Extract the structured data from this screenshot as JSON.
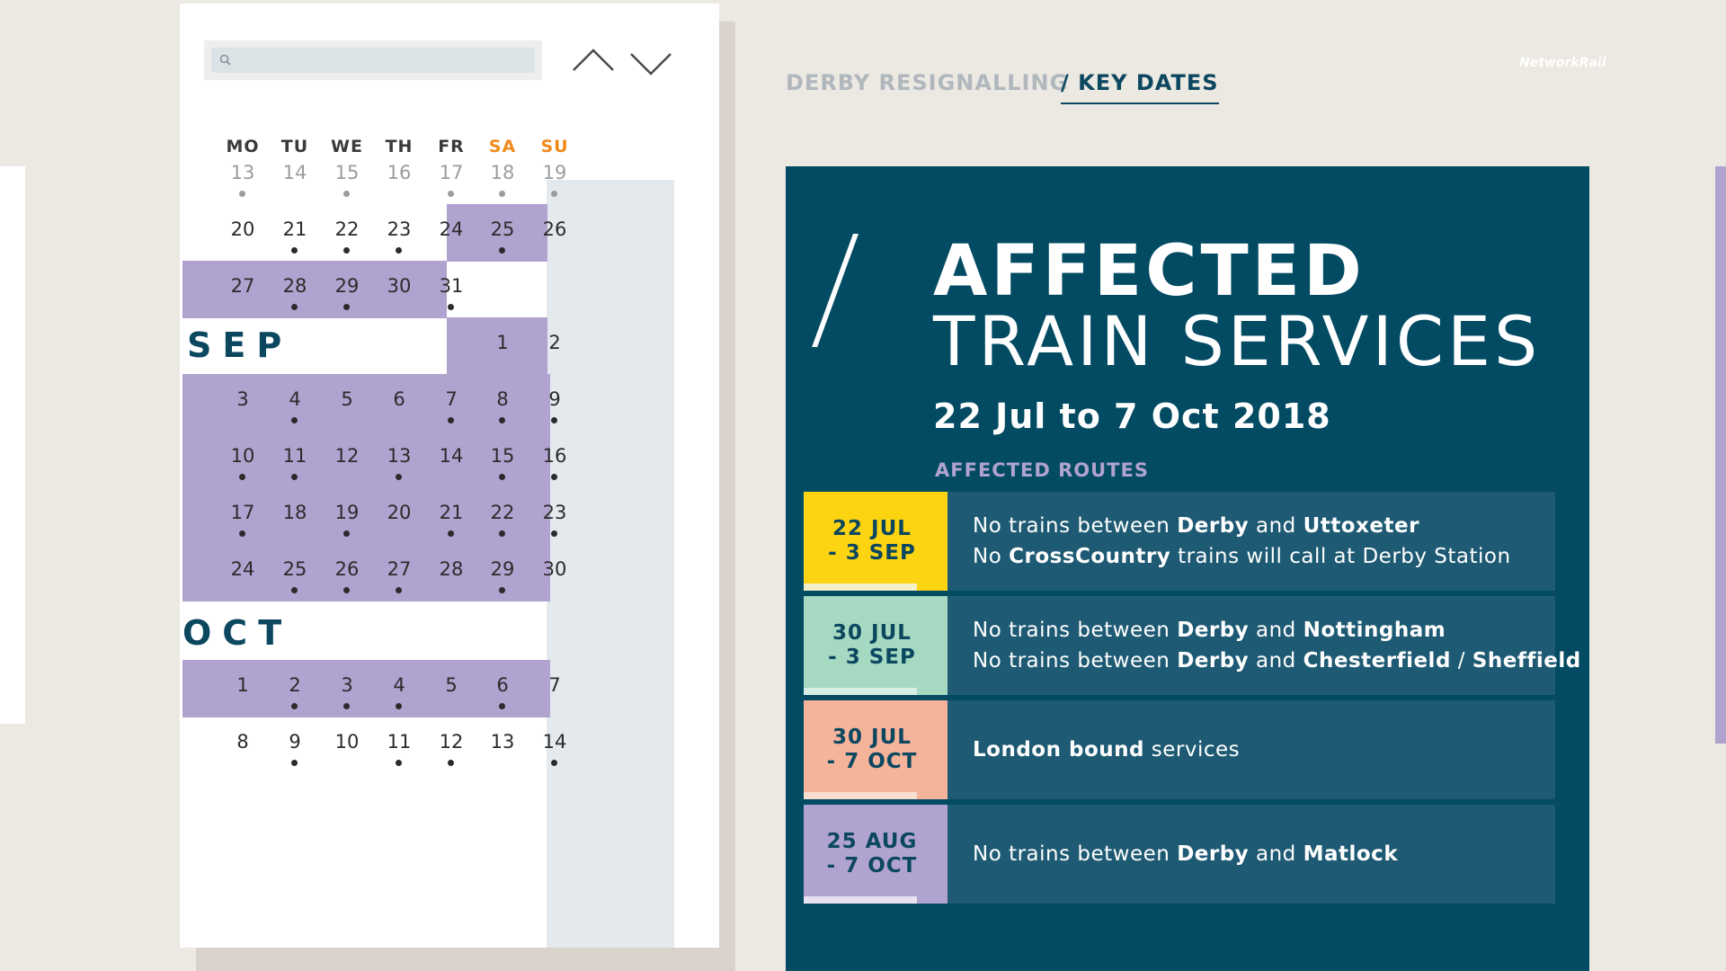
{
  "calendar": {
    "search": {
      "placeholder": ""
    },
    "day_headers": [
      "MO",
      "TU",
      "WE",
      "TH",
      "FR",
      "SA",
      "SU"
    ],
    "rows": [
      {
        "cells": [
          {
            "day": "13",
            "dot": true,
            "grey": true
          },
          {
            "day": "14",
            "dot": false,
            "grey": true
          },
          {
            "day": "15",
            "dot": true,
            "grey": true
          },
          {
            "day": "16",
            "dot": false,
            "grey": true
          },
          {
            "day": "17",
            "dot": true,
            "grey": true
          },
          {
            "day": "18",
            "dot": true,
            "grey": true
          },
          {
            "day": "19",
            "dot": true,
            "grey": true
          }
        ]
      },
      {
        "cells": [
          {
            "day": "20",
            "dot": false
          },
          {
            "day": "21",
            "dot": true
          },
          {
            "day": "22",
            "dot": true
          },
          {
            "day": "23",
            "dot": true
          },
          {
            "day": "24",
            "dot": false
          },
          {
            "day": "25",
            "dot": true
          },
          {
            "day": "26",
            "dot": false
          }
        ]
      },
      {
        "cells": [
          {
            "day": "27",
            "dot": false
          },
          {
            "day": "28",
            "dot": true
          },
          {
            "day": "29",
            "dot": true
          },
          {
            "day": "30",
            "dot": false
          },
          {
            "day": "31",
            "dot": true
          }
        ]
      },
      {
        "month": "SEP",
        "cells": [
          {
            "day": "1",
            "dot": false
          },
          {
            "day": "2",
            "dot": false
          }
        ]
      },
      {
        "cells": [
          {
            "day": "3",
            "dot": false
          },
          {
            "day": "4",
            "dot": true
          },
          {
            "day": "5",
            "dot": false
          },
          {
            "day": "6",
            "dot": false
          },
          {
            "day": "7",
            "dot": true
          },
          {
            "day": "8",
            "dot": true
          },
          {
            "day": "9",
            "dot": true
          }
        ]
      },
      {
        "cells": [
          {
            "day": "10",
            "dot": true
          },
          {
            "day": "11",
            "dot": true
          },
          {
            "day": "12",
            "dot": false
          },
          {
            "day": "13",
            "dot": true
          },
          {
            "day": "14",
            "dot": false
          },
          {
            "day": "15",
            "dot": true
          },
          {
            "day": "16",
            "dot": true
          }
        ]
      },
      {
        "cells": [
          {
            "day": "17",
            "dot": true
          },
          {
            "day": "18",
            "dot": false
          },
          {
            "day": "19",
            "dot": true
          },
          {
            "day": "20",
            "dot": false
          },
          {
            "day": "21",
            "dot": true
          },
          {
            "day": "22",
            "dot": true
          },
          {
            "day": "23",
            "dot": true
          }
        ]
      },
      {
        "cells": [
          {
            "day": "24",
            "dot": false
          },
          {
            "day": "25",
            "dot": true
          },
          {
            "day": "26",
            "dot": true
          },
          {
            "day": "27",
            "dot": true
          },
          {
            "day": "28",
            "dot": false
          },
          {
            "day": "29",
            "dot": true
          },
          {
            "day": "30",
            "dot": false
          }
        ]
      },
      {
        "month": "OCT",
        "cells": []
      },
      {
        "cells": [
          {
            "day": "1",
            "dot": false
          },
          {
            "day": "2",
            "dot": true
          },
          {
            "day": "3",
            "dot": true
          },
          {
            "day": "4",
            "dot": true
          },
          {
            "day": "5",
            "dot": false
          },
          {
            "day": "6",
            "dot": true
          },
          {
            "day": "7",
            "dot": false
          }
        ]
      },
      {
        "cells": [
          {
            "day": "8",
            "dot": false
          },
          {
            "day": "9",
            "dot": true
          },
          {
            "day": "10",
            "dot": false
          },
          {
            "day": "11",
            "dot": true
          },
          {
            "day": "12",
            "dot": true
          },
          {
            "day": "13",
            "dot": false
          },
          {
            "day": "14",
            "dot": true
          }
        ]
      }
    ]
  },
  "header": {
    "breadcrumb_parent": "DERBY RESIGNALLING",
    "breadcrumb_current": "/ KEY DATES",
    "logo": "NetworkRail"
  },
  "panel": {
    "title_line1": "AFFECTED",
    "title_line2": "TRAIN SERVICES",
    "date_range": "22 Jul to 7 Oct 2018",
    "routes_label": "AFFECTED ROUTES",
    "routes": [
      {
        "date_lines": [
          "22 JUL",
          "- 3 SEP"
        ],
        "color": "#fcd411",
        "under_color": "#f4eec9",
        "lines": [
          [
            {
              "t": "No trains between ",
              "b": false
            },
            {
              "t": "Derby",
              "b": true
            },
            {
              "t": " and ",
              "b": false
            },
            {
              "t": "Uttoxeter",
              "b": true
            }
          ],
          [
            {
              "t": "No ",
              "b": false
            },
            {
              "t": "CrossCountry",
              "b": true
            },
            {
              "t": " trains will call at Derby Station",
              "b": false
            }
          ]
        ]
      },
      {
        "date_lines": [
          "30 JUL",
          "- 3  SEP"
        ],
        "color": "#a5d9c2",
        "under_color": "#d7eee3",
        "lines": [
          [
            {
              "t": "No trains between ",
              "b": false
            },
            {
              "t": "Derby",
              "b": true
            },
            {
              "t": " and ",
              "b": false
            },
            {
              "t": "Nottingham",
              "b": true
            }
          ],
          [
            {
              "t": "No trains between ",
              "b": false
            },
            {
              "t": "Derby",
              "b": true
            },
            {
              "t": " and ",
              "b": false
            },
            {
              "t": "Chesterfield",
              "b": true
            },
            {
              "t": " / ",
              "b": false
            },
            {
              "t": "Sheffield",
              "b": true
            }
          ]
        ]
      },
      {
        "date_lines": [
          "30 JUL",
          "- 7 OCT"
        ],
        "color": "#f5b39a",
        "under_color": "#f8ddd1",
        "lines": [
          [
            {
              "t": "London bound",
              "b": true
            },
            {
              "t": " services",
              "b": false
            }
          ]
        ]
      },
      {
        "date_lines": [
          "25 AUG",
          "- 7 OCT"
        ],
        "color": "#b1a3d0",
        "under_color": "#e7e2f0",
        "lines": [
          [
            {
              "t": "No trains between ",
              "b": false
            },
            {
              "t": "Derby",
              "b": true
            },
            {
              "t": " and ",
              "b": false
            },
            {
              "t": "Matlock",
              "b": true
            }
          ]
        ]
      }
    ]
  },
  "colors": {
    "accent_purple": "#b1a3d0",
    "panel_navy": "#024b63",
    "weekend_orange": "#f08a1c"
  }
}
